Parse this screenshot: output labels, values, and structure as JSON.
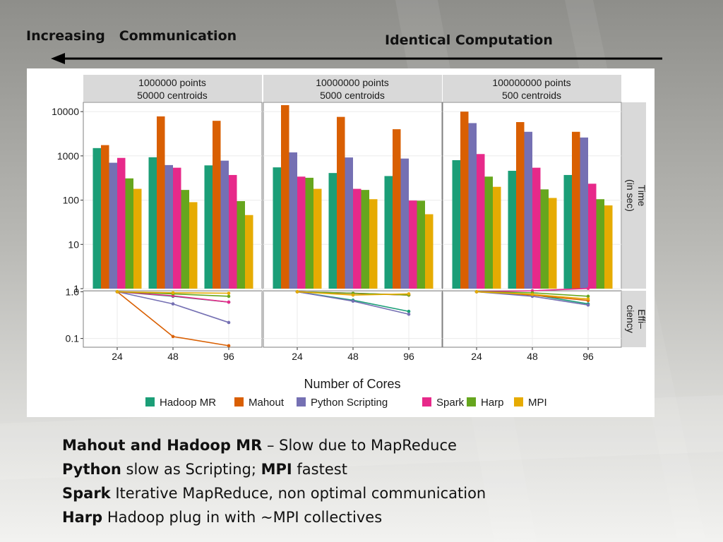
{
  "slide": {
    "header_left": "Increasing   Communication",
    "header_right": "Identical Computation",
    "notes": [
      {
        "bold": "Mahout and Hadoop MR",
        "rest": " – Slow due to MapReduce"
      },
      {
        "bold": "Python",
        "rest": " slow as Scripting; "
      },
      {
        "bold": "MPI",
        "rest": " fastest"
      },
      {
        "bold": "Spark",
        "rest": " Iterative MapReduce, non optimal communication"
      },
      {
        "bold": "Harp",
        "rest": " Hadoop plug in with ~MPI collectives"
      }
    ]
  },
  "chart_data": {
    "type": "bar",
    "title": "",
    "xlabel": "Number of Cores",
    "categories": [
      "24",
      "48",
      "96"
    ],
    "series_names": [
      "Hadoop MR",
      "Mahout",
      "Python Scripting",
      "Spark",
      "Harp",
      "MPI"
    ],
    "colors": [
      "#1b9e77",
      "#d95f02",
      "#7570b3",
      "#e7298a",
      "#66a61e",
      "#e6ab02"
    ],
    "legend_position": "bottom",
    "grid": true,
    "facets": [
      {
        "label_line1": "1000000 points",
        "label_line2": "50000 centroids",
        "time": [
          [
            1500,
            1750,
            700,
            900,
            310,
            180
          ],
          [
            930,
            7800,
            620,
            540,
            170,
            90
          ],
          [
            610,
            6200,
            780,
            370,
            95,
            46
          ]
        ],
        "efficiency": [
          [
            1.0,
            1.0,
            1.0,
            1.0,
            1.0,
            1.0
          ],
          [
            0.8,
            0.11,
            0.55,
            0.82,
            0.9,
            0.95
          ],
          [
            0.6,
            0.07,
            0.22,
            0.6,
            0.8,
            0.93
          ]
        ]
      },
      {
        "label_line1": "10000000 points",
        "label_line2": "5000 centroids",
        "time": [
          [
            550,
            14000,
            1200,
            340,
            320,
            180
          ],
          [
            410,
            7600,
            920,
            180,
            170,
            105
          ],
          [
            350,
            4000,
            870,
            98,
            97,
            48
          ]
        ],
        "efficiency": [
          [
            1.0,
            1.0,
            1.0,
            1.0,
            1.0,
            1.0
          ],
          [
            0.66,
            0.92,
            0.63,
            0.93,
            0.93,
            0.85
          ],
          [
            0.38,
            0.85,
            0.33,
            0.85,
            0.85,
            0.9
          ]
        ]
      },
      {
        "label_line1": "100000000 points",
        "label_line2": "500 centroids",
        "time": [
          [
            800,
            10000,
            5500,
            1100,
            340,
            200
          ],
          [
            460,
            5800,
            3500,
            540,
            175,
            112
          ],
          [
            370,
            3500,
            2600,
            235,
            105,
            76
          ]
        ],
        "efficiency": [
          [
            1.0,
            1.0,
            1.0,
            1.0,
            1.0,
            1.0
          ],
          [
            0.87,
            0.85,
            0.8,
            1.05,
            0.95,
            0.88
          ],
          [
            0.55,
            0.65,
            0.52,
            1.18,
            0.8,
            0.7
          ]
        ]
      }
    ],
    "time_axis": {
      "label_line1": "Time",
      "label_line2": "(in sec)",
      "scale": "log",
      "ylim": [
        1,
        14000
      ],
      "ticks": [
        "1",
        "10",
        "100",
        "1000",
        "10000"
      ]
    },
    "efficiency_axis": {
      "label_line1": "Effi–",
      "label_line2": "ciency",
      "scale": "log",
      "ylim": [
        0.065,
        1.05
      ],
      "ticks": [
        "0.1",
        "1.0"
      ]
    }
  }
}
